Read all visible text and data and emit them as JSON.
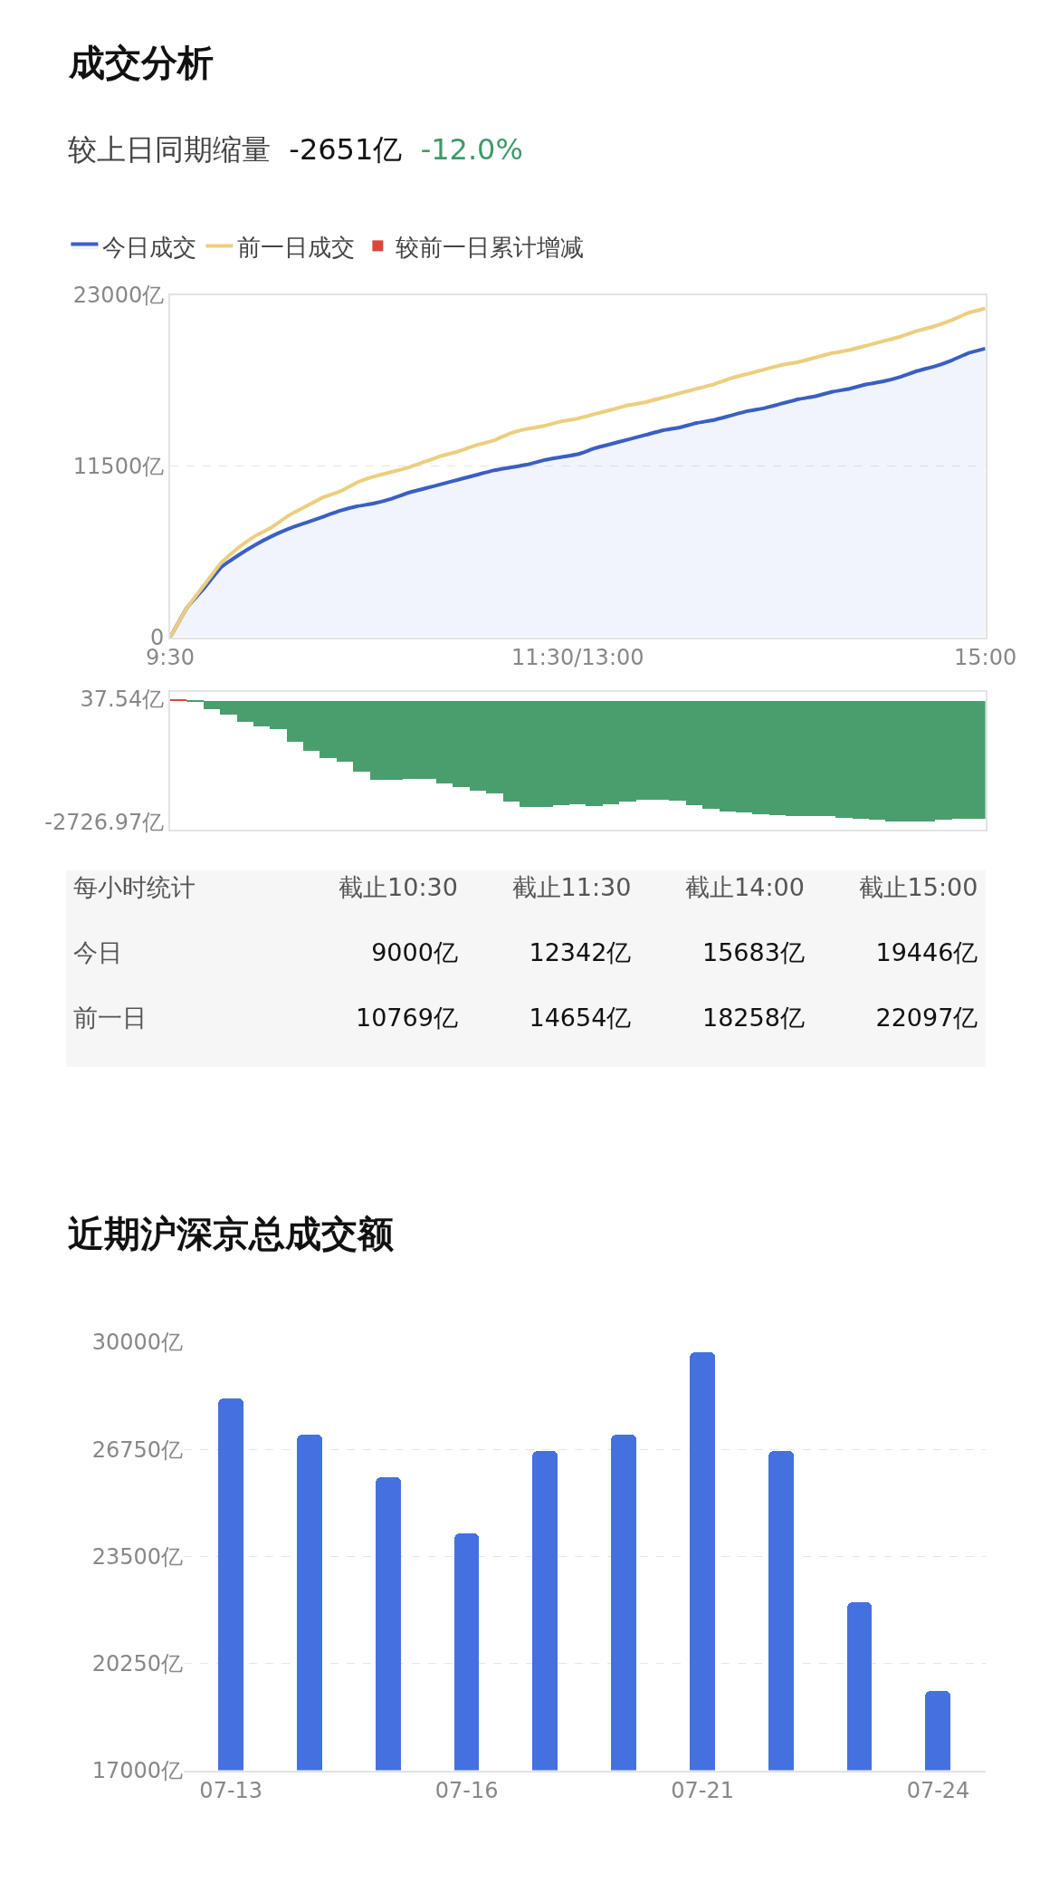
{
  "chart_data": [
    {
      "type": "line",
      "title": "成交分析",
      "subtitle": "较上日同期缩量 -2651亿 -12.0%",
      "legend": "top left",
      "grid": "y",
      "marker": "none",
      "line_style": "solid",
      "categories": [
        "9:30",
        null,
        null,
        null,
        null,
        null,
        null,
        null,
        null,
        null,
        null,
        null,
        null,
        null,
        null,
        null,
        null,
        null,
        null,
        null,
        null,
        null,
        null,
        null,
        "11:30/13:00",
        null,
        null,
        null,
        null,
        null,
        null,
        null,
        null,
        null,
        null,
        null,
        null,
        null,
        null,
        null,
        null,
        null,
        null,
        null,
        null,
        null,
        null,
        null,
        "15:00"
      ],
      "ylim": [
        0,
        23000
      ],
      "yticks": [
        {
          "value": 0,
          "label": "0"
        },
        {
          "value": 11500,
          "label": "11500亿"
        },
        {
          "value": 23000,
          "label": "23000亿"
        }
      ],
      "series": [
        {
          "name": "今日成交",
          "type": "area",
          "color": "#3a5fc4",
          "values": [
            0,
            2000,
            3300,
            4700,
            5500,
            6200,
            6800,
            7300,
            7700,
            8100,
            8500,
            8800,
            9000,
            9300,
            9700,
            10000,
            10300,
            10600,
            10900,
            11200,
            11400,
            11600,
            11900,
            12100,
            12300,
            12700,
            13000,
            13300,
            13600,
            13900,
            14100,
            14400,
            14600,
            14900,
            15200,
            15400,
            15700,
            16000,
            16200,
            16500,
            16700,
            17000,
            17200,
            17500,
            17900,
            18200,
            18600,
            19100,
            19400
          ]
        },
        {
          "name": "前一日成交",
          "type": "line",
          "color": "#ecce7e",
          "values": [
            0,
            2000,
            3500,
            5000,
            6000,
            6800,
            7400,
            8200,
            8800,
            9400,
            9800,
            10400,
            10800,
            11100,
            11400,
            11800,
            12200,
            12500,
            12900,
            13200,
            13700,
            14000,
            14200,
            14500,
            14700,
            15000,
            15300,
            15600,
            15800,
            16100,
            16400,
            16700,
            17000,
            17400,
            17700,
            18000,
            18300,
            18500,
            18800,
            19100,
            19300,
            19600,
            19900,
            20200,
            20600,
            20900,
            21300,
            21800,
            22100
          ]
        }
      ]
    },
    {
      "type": "bar",
      "tick_labels": "y",
      "categories": [
        null,
        null,
        null,
        null,
        null,
        null,
        null,
        null,
        null,
        null,
        null,
        null,
        null,
        null,
        null,
        null,
        null,
        null,
        null,
        null,
        null,
        null,
        null,
        null,
        null,
        null,
        null,
        null,
        null,
        null,
        null,
        null,
        null,
        null,
        null,
        null,
        null,
        null,
        null,
        null,
        null,
        null,
        null,
        null,
        null,
        null,
        null,
        null,
        null
      ],
      "ylim": [
        -2900,
        200
      ],
      "yticks": [
        {
          "value": 37.54,
          "label": "37.54亿"
        },
        {
          "value": -2726.97,
          "label": "-2726.97亿"
        }
      ],
      "series": [
        {
          "name": "较前一日累计增减",
          "colors": [
            "#d9483b",
            "#4a9e6e",
            "#4a9e6e",
            "#4a9e6e",
            "#4a9e6e",
            "#4a9e6e",
            "#4a9e6e",
            "#4a9e6e",
            "#4a9e6e",
            "#4a9e6e",
            "#4a9e6e",
            "#4a9e6e",
            "#4a9e6e",
            "#4a9e6e",
            "#4a9e6e",
            "#4a9e6e",
            "#4a9e6e",
            "#4a9e6e",
            "#4a9e6e",
            "#4a9e6e",
            "#4a9e6e",
            "#4a9e6e",
            "#4a9e6e",
            "#4a9e6e",
            "#4a9e6e",
            "#4a9e6e",
            "#4a9e6e",
            "#4a9e6e",
            "#4a9e6e",
            "#4a9e6e",
            "#4a9e6e",
            "#4a9e6e",
            "#4a9e6e",
            "#4a9e6e",
            "#4a9e6e",
            "#4a9e6e",
            "#4a9e6e",
            "#4a9e6e",
            "#4a9e6e",
            "#4a9e6e",
            "#4a9e6e",
            "#4a9e6e",
            "#4a9e6e",
            "#4a9e6e",
            "#4a9e6e",
            "#4a9e6e",
            "#4a9e6e",
            "#4a9e6e",
            "#4a9e6e"
          ],
          "values": [
            37.54,
            -10,
            -190,
            -320,
            -480,
            -580,
            -640,
            -920,
            -1120,
            -1280,
            -1380,
            -1600,
            -1770,
            -1780,
            -1750,
            -1750,
            -1860,
            -1940,
            -2020,
            -2080,
            -2270,
            -2400,
            -2390,
            -2360,
            -2340,
            -2370,
            -2340,
            -2260,
            -2230,
            -2220,
            -2250,
            -2360,
            -2440,
            -2500,
            -2520,
            -2550,
            -2580,
            -2590,
            -2590,
            -2600,
            -2630,
            -2650,
            -2680,
            -2710,
            -2726.97,
            -2710,
            -2680,
            -2660,
            -2650
          ]
        }
      ]
    },
    {
      "type": "other",
      "title": "每小时统计",
      "categories": [
        "截止10:30",
        "截止11:30",
        "截止14:00",
        "截止15:00"
      ],
      "series": [
        {
          "name": "今日",
          "values": [
            9000,
            12342,
            15683,
            19446
          ],
          "value_labels": [
            "9000亿",
            "12342亿",
            "15683亿",
            "19446亿"
          ]
        },
        {
          "name": "前一日",
          "values": [
            10769,
            14654,
            18258,
            22097
          ],
          "value_labels": [
            "10769亿",
            "14654亿",
            "18258亿",
            "22097亿"
          ]
        }
      ]
    },
    {
      "type": "bar",
      "title": "近期沪深京总成交额",
      "grid": "y",
      "color": "#4571e0",
      "categories": [
        "07-13",
        null,
        null,
        "07-16",
        null,
        null,
        "07-21",
        null,
        null,
        "07-24"
      ],
      "values": [
        28300,
        27200,
        25900,
        24200,
        26700,
        27200,
        29700,
        26700,
        22100,
        19400
      ],
      "ylim": [
        17000,
        30000
      ],
      "yticks": [
        {
          "value": 17000,
          "label": "17000亿"
        },
        {
          "value": 20250,
          "label": "20250亿"
        },
        {
          "value": 23500,
          "label": "23500亿"
        },
        {
          "value": 26750,
          "label": "26750亿"
        },
        {
          "value": 30000,
          "label": "30000亿"
        }
      ]
    }
  ]
}
